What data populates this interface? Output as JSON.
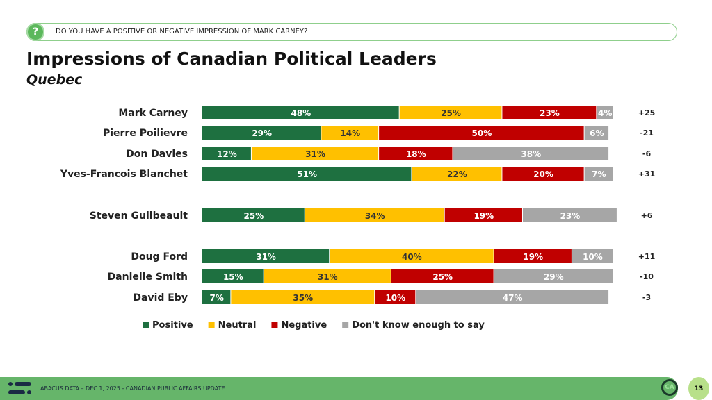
{
  "question": {
    "icon": "question-icon",
    "text": "DO YOU HAVE A POSITIVE OR NEGATIVE IMPRESSION OF MARK CARNEY?"
  },
  "header": {
    "title": "Impressions of Canadian Political Leaders",
    "subtitle": "Quebec"
  },
  "chart_data": {
    "type": "bar",
    "orientation": "horizontal",
    "stacked": true,
    "categories": [
      "Mark Carney",
      "Pierre Poilievre",
      "Don Davies",
      "Yves-Francois Blanchet",
      "Steven Guilbeault",
      "Doug Ford",
      "Danielle Smith",
      "David Eby"
    ],
    "series": [
      {
        "name": "Positive",
        "color": "#1e7040",
        "values": [
          48,
          29,
          12,
          51,
          25,
          31,
          15,
          7
        ]
      },
      {
        "name": "Neutral",
        "color": "#ffc000",
        "values": [
          25,
          14,
          31,
          22,
          34,
          40,
          31,
          35
        ]
      },
      {
        "name": "Negative",
        "color": "#c00000",
        "values": [
          23,
          50,
          18,
          20,
          19,
          19,
          25,
          10
        ]
      },
      {
        "name": "Don't know enough to say",
        "color": "#a6a6a6",
        "values": [
          4,
          6,
          38,
          7,
          23,
          10,
          29,
          47
        ]
      }
    ],
    "net": [
      "+25",
      "-21",
      "-6",
      "+31",
      "+6",
      "+11",
      "-10",
      "-3"
    ],
    "legend": "bottom",
    "xlim": [
      0,
      100
    ],
    "grid": false
  },
  "footer": {
    "text": "ABACUS DATA  – DEC 1, 2025 - CANADIAN PUBLIC AFFAIRS UPDATE",
    "badge": "CA",
    "page": "13"
  }
}
